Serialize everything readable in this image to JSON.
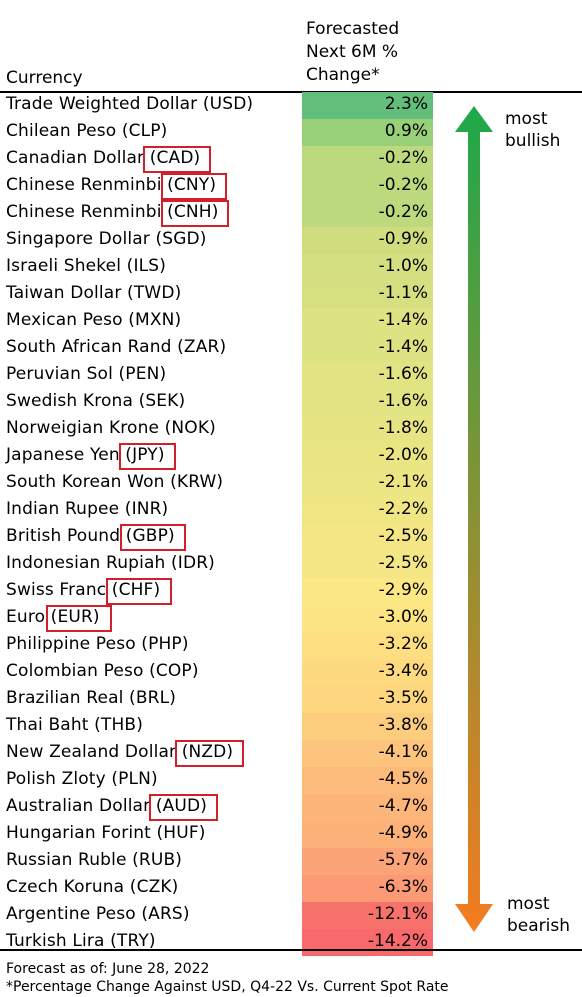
{
  "header": {
    "currency_label": "Currency",
    "change_lines": [
      "Forecasted",
      "Next 6M %",
      "Change*"
    ]
  },
  "chart_data": {
    "type": "table",
    "columns": [
      "Currency",
      "Forecasted Next 6M % Change*"
    ],
    "rows": [
      {
        "name": "Trade Weighted Dollar (USD)",
        "value": "2.3%",
        "color": "#63be7b",
        "highlight": false
      },
      {
        "name": "Chilean Peso (CLP)",
        "value": "0.9%",
        "color": "#98cf79",
        "highlight": false
      },
      {
        "name": "Canadian Dollar (CAD)",
        "value": "-0.2%",
        "color": "#bcd97d",
        "highlight": true
      },
      {
        "name": "Chinese Renminbi (CNY)",
        "value": "-0.2%",
        "color": "#bcd97d",
        "highlight": true
      },
      {
        "name": "Chinese Renminbi (CNH)",
        "value": "-0.2%",
        "color": "#bcd97d",
        "highlight": true
      },
      {
        "name": "Singapore Dollar (SGD)",
        "value": "-0.9%",
        "color": "#cfdd7f",
        "highlight": false
      },
      {
        "name": "Israeli Shekel (ILS)",
        "value": "-1.0%",
        "color": "#d3df80",
        "highlight": false
      },
      {
        "name": "Taiwan Dollar (TWD)",
        "value": "-1.1%",
        "color": "#d7e081",
        "highlight": false
      },
      {
        "name": "Mexican Peso (MXN)",
        "value": "-1.4%",
        "color": "#dde282",
        "highlight": false
      },
      {
        "name": "South African Rand (ZAR)",
        "value": "-1.4%",
        "color": "#dde282",
        "highlight": false
      },
      {
        "name": "Peruvian Sol (PEN)",
        "value": "-1.6%",
        "color": "#e2e383",
        "highlight": false
      },
      {
        "name": "Swedish Krona (SEK)",
        "value": "-1.6%",
        "color": "#e2e383",
        "highlight": false
      },
      {
        "name": "Norweigian Krone (NOK)",
        "value": "-1.8%",
        "color": "#e6e483",
        "highlight": false
      },
      {
        "name": "Japanese Yen (JPY)",
        "value": "-2.0%",
        "color": "#eae583",
        "highlight": true
      },
      {
        "name": "South Korean Won (KRW)",
        "value": "-2.1%",
        "color": "#ece583",
        "highlight": false
      },
      {
        "name": "Indian Rupee (INR)",
        "value": "-2.2%",
        "color": "#efe583",
        "highlight": false
      },
      {
        "name": "British Pound (GBP)",
        "value": "-2.5%",
        "color": "#f4e684",
        "highlight": true
      },
      {
        "name": "Indonesian Rupiah (IDR)",
        "value": "-2.5%",
        "color": "#f4e684",
        "highlight": false
      },
      {
        "name": "Swiss Franc (CHF)",
        "value": "-2.9%",
        "color": "#fbe784",
        "highlight": true
      },
      {
        "name": "Euro (EUR)",
        "value": "-3.0%",
        "color": "#fde583",
        "highlight": true
      },
      {
        "name": "Philippine Peso (PHP)",
        "value": "-3.2%",
        "color": "#fddf81",
        "highlight": false
      },
      {
        "name": "Colombian Peso (COP)",
        "value": "-3.4%",
        "color": "#fdd980",
        "highlight": false
      },
      {
        "name": "Brazilian Real (BRL)",
        "value": "-3.5%",
        "color": "#fdd67f",
        "highlight": false
      },
      {
        "name": "Thai Baht (THB)",
        "value": "-3.8%",
        "color": "#fdcd7e",
        "highlight": false
      },
      {
        "name": "New Zealand Dollar (NZD)",
        "value": "-4.1%",
        "color": "#fcc47c",
        "highlight": true
      },
      {
        "name": "Polish Zloty (PLN)",
        "value": "-4.5%",
        "color": "#fcbb7a",
        "highlight": false
      },
      {
        "name": "Australian Dollar (AUD)",
        "value": "-4.7%",
        "color": "#fcb679",
        "highlight": true
      },
      {
        "name": "Hungarian Forint (HUF)",
        "value": "-4.9%",
        "color": "#fcb179",
        "highlight": false
      },
      {
        "name": "Russian Ruble (RUB)",
        "value": "-5.7%",
        "color": "#fba477",
        "highlight": false
      },
      {
        "name": "Czech Koruna (CZK)",
        "value": "-6.3%",
        "color": "#fb9a75",
        "highlight": false
      },
      {
        "name": "Argentine Peso (ARS)",
        "value": "-12.1%",
        "color": "#f8726c",
        "highlight": false
      },
      {
        "name": "Turkish Lira (TRY)",
        "value": "-14.2%",
        "color": "#f8696b",
        "highlight": false
      }
    ]
  },
  "scale": {
    "top_label_lines": [
      "most",
      "bullish"
    ],
    "bottom_label_lines": [
      "most",
      "bearish"
    ],
    "top_color": "#1ea84a",
    "bottom_color": "#f47b20"
  },
  "footer": {
    "line1": "Forecast as of: June 28, 2022",
    "line2": "*Percentage Change Against USD, Q4-22 Vs. Current Spot Rate"
  },
  "highlight_color": "#d21f2b"
}
